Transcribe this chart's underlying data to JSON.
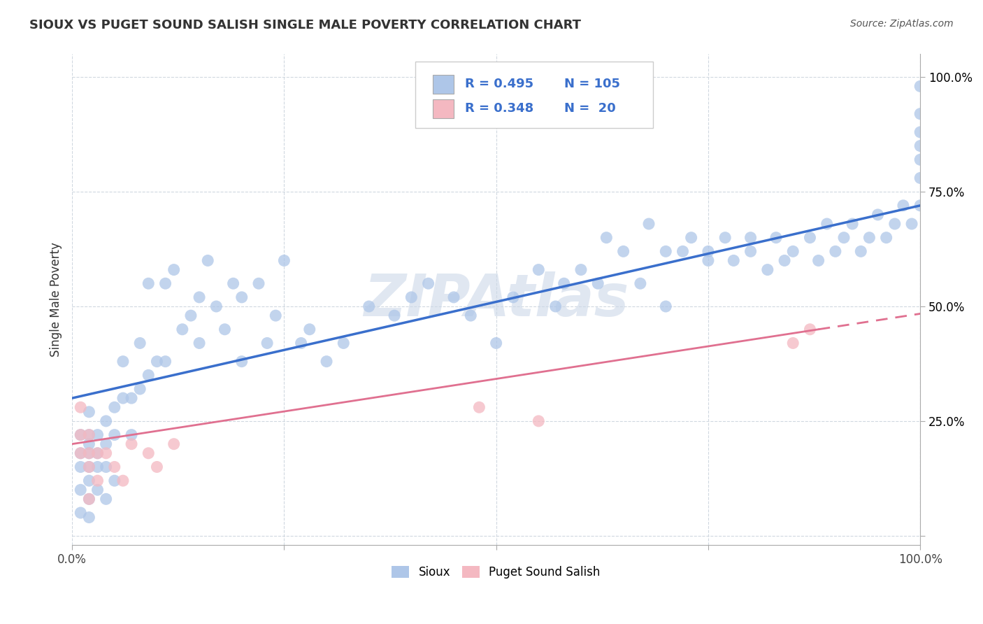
{
  "title": "SIOUX VS PUGET SOUND SALISH SINGLE MALE POVERTY CORRELATION CHART",
  "source": "Source: ZipAtlas.com",
  "ylabel": "Single Male Poverty",
  "xlim": [
    0.0,
    1.0
  ],
  "ylim": [
    -0.02,
    1.05
  ],
  "sioux_color": "#aec6e8",
  "salish_color": "#f4b8c1",
  "sioux_line_color": "#3a6fcc",
  "salish_line_color": "#e07090",
  "watermark": "ZIPAtlas",
  "watermark_color": "#ccd8e8",
  "sioux_line_start": 0.3,
  "sioux_line_end": 0.72,
  "salish_line_start": 0.2,
  "salish_line_end": 0.45,
  "salish_line_solid_end": 0.88,
  "sioux_x": [
    0.01,
    0.01,
    0.01,
    0.01,
    0.01,
    0.02,
    0.02,
    0.02,
    0.02,
    0.02,
    0.02,
    0.02,
    0.02,
    0.03,
    0.03,
    0.03,
    0.03,
    0.04,
    0.04,
    0.04,
    0.04,
    0.05,
    0.05,
    0.05,
    0.06,
    0.06,
    0.07,
    0.07,
    0.08,
    0.08,
    0.09,
    0.09,
    0.1,
    0.11,
    0.11,
    0.12,
    0.13,
    0.14,
    0.15,
    0.15,
    0.16,
    0.17,
    0.18,
    0.19,
    0.2,
    0.2,
    0.22,
    0.23,
    0.24,
    0.25,
    0.27,
    0.28,
    0.3,
    0.32,
    0.35,
    0.38,
    0.4,
    0.42,
    0.45,
    0.47,
    0.5,
    0.52,
    0.55,
    0.57,
    0.58,
    0.6,
    0.62,
    0.63,
    0.65,
    0.67,
    0.68,
    0.7,
    0.7,
    0.72,
    0.73,
    0.75,
    0.75,
    0.77,
    0.78,
    0.8,
    0.8,
    0.82,
    0.83,
    0.84,
    0.85,
    0.87,
    0.88,
    0.89,
    0.9,
    0.91,
    0.92,
    0.93,
    0.94,
    0.95,
    0.96,
    0.97,
    0.98,
    0.99,
    1.0,
    1.0,
    1.0,
    1.0,
    1.0,
    1.0,
    1.0
  ],
  "sioux_y": [
    0.22,
    0.18,
    0.15,
    0.1,
    0.05,
    0.27,
    0.22,
    0.2,
    0.18,
    0.15,
    0.12,
    0.08,
    0.04,
    0.22,
    0.18,
    0.15,
    0.1,
    0.25,
    0.2,
    0.15,
    0.08,
    0.28,
    0.22,
    0.12,
    0.38,
    0.3,
    0.3,
    0.22,
    0.42,
    0.32,
    0.55,
    0.35,
    0.38,
    0.55,
    0.38,
    0.58,
    0.45,
    0.48,
    0.52,
    0.42,
    0.6,
    0.5,
    0.45,
    0.55,
    0.52,
    0.38,
    0.55,
    0.42,
    0.48,
    0.6,
    0.42,
    0.45,
    0.38,
    0.42,
    0.5,
    0.48,
    0.52,
    0.55,
    0.52,
    0.48,
    0.42,
    0.52,
    0.58,
    0.5,
    0.55,
    0.58,
    0.55,
    0.65,
    0.62,
    0.55,
    0.68,
    0.62,
    0.5,
    0.62,
    0.65,
    0.6,
    0.62,
    0.65,
    0.6,
    0.62,
    0.65,
    0.58,
    0.65,
    0.6,
    0.62,
    0.65,
    0.6,
    0.68,
    0.62,
    0.65,
    0.68,
    0.62,
    0.65,
    0.7,
    0.65,
    0.68,
    0.72,
    0.68,
    0.98,
    0.92,
    0.88,
    0.85,
    0.82,
    0.78,
    0.72
  ],
  "salish_x": [
    0.01,
    0.01,
    0.01,
    0.02,
    0.02,
    0.02,
    0.02,
    0.03,
    0.03,
    0.04,
    0.05,
    0.06,
    0.07,
    0.09,
    0.1,
    0.12,
    0.48,
    0.55,
    0.85,
    0.87
  ],
  "salish_y": [
    0.28,
    0.22,
    0.18,
    0.22,
    0.18,
    0.15,
    0.08,
    0.18,
    0.12,
    0.18,
    0.15,
    0.12,
    0.2,
    0.18,
    0.15,
    0.2,
    0.28,
    0.25,
    0.42,
    0.45
  ]
}
